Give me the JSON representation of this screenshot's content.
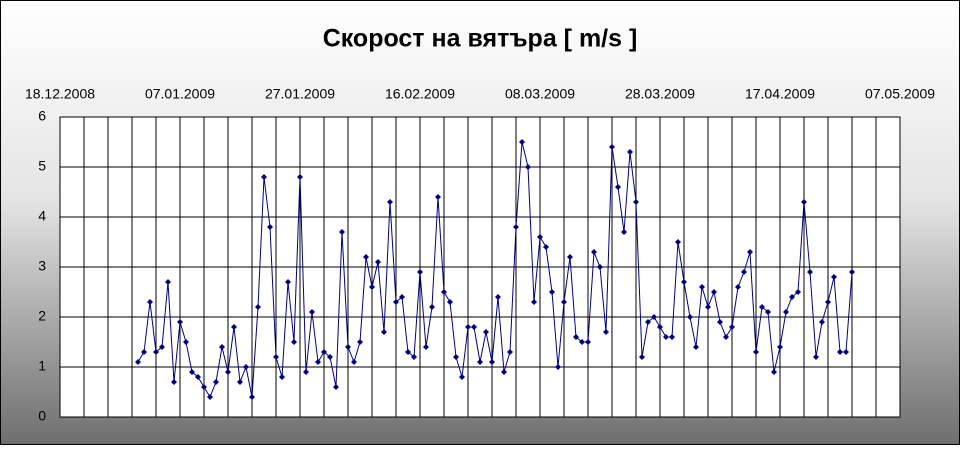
{
  "chart_data": {
    "type": "line",
    "title": "Скорост на вятъра  [ m/s ]",
    "x": [
      "31.12.2008",
      "01.01.2009",
      "02.01.2009",
      "03.01.2009",
      "04.01.2009",
      "05.01.2009",
      "06.01.2009",
      "07.01.2009",
      "08.01.2009",
      "09.01.2009",
      "10.01.2009",
      "11.01.2009",
      "12.01.2009",
      "13.01.2009",
      "14.01.2009",
      "15.01.2009",
      "16.01.2009",
      "17.01.2009",
      "18.01.2009",
      "19.01.2009",
      "20.01.2009",
      "21.01.2009",
      "22.01.2009",
      "23.01.2009",
      "24.01.2009",
      "25.01.2009",
      "26.01.2009",
      "27.01.2009",
      "28.01.2009",
      "29.01.2009",
      "30.01.2009",
      "31.01.2009",
      "01.02.2009",
      "02.02.2009",
      "03.02.2009",
      "04.02.2009",
      "05.02.2009",
      "06.02.2009",
      "07.02.2009",
      "08.02.2009",
      "09.02.2009",
      "10.02.2009",
      "11.02.2009",
      "12.02.2009",
      "13.02.2009",
      "14.02.2009",
      "15.02.2009",
      "16.02.2009",
      "17.02.2009",
      "18.02.2009",
      "19.02.2009",
      "20.02.2009",
      "21.02.2009",
      "22.02.2009",
      "23.02.2009",
      "24.02.2009",
      "25.02.2009",
      "26.02.2009",
      "27.02.2009",
      "28.02.2009",
      "01.03.2009",
      "02.03.2009",
      "03.03.2009",
      "04.03.2009",
      "05.03.2009",
      "06.03.2009",
      "07.03.2009",
      "08.03.2009",
      "09.03.2009",
      "10.03.2009",
      "11.03.2009",
      "12.03.2009",
      "13.03.2009",
      "14.03.2009",
      "15.03.2009",
      "16.03.2009",
      "17.03.2009",
      "18.03.2009",
      "19.03.2009",
      "20.03.2009",
      "21.03.2009",
      "22.03.2009",
      "23.03.2009",
      "24.03.2009",
      "25.03.2009",
      "26.03.2009",
      "27.03.2009",
      "28.03.2009",
      "29.03.2009",
      "30.03.2009",
      "31.03.2009",
      "01.04.2009",
      "02.04.2009",
      "03.04.2009",
      "04.04.2009",
      "05.04.2009",
      "06.04.2009",
      "07.04.2009",
      "08.04.2009",
      "09.04.2009",
      "10.04.2009",
      "11.04.2009",
      "12.04.2009",
      "13.04.2009",
      "14.04.2009",
      "15.04.2009",
      "16.04.2009",
      "17.04.2009",
      "18.04.2009",
      "19.04.2009",
      "20.04.2009",
      "21.04.2009",
      "22.04.2009",
      "23.04.2009",
      "24.04.2009",
      "25.04.2009",
      "26.04.2009",
      "27.04.2009",
      "28.04.2009",
      "29.04.2009"
    ],
    "series": [
      {
        "color": "#000080",
        "values": [
          1.1,
          1.3,
          2.3,
          1.3,
          1.4,
          2.7,
          0.7,
          1.9,
          1.5,
          0.9,
          0.8,
          0.6,
          0.4,
          0.7,
          1.4,
          0.9,
          1.8,
          0.7,
          1.0,
          0.4,
          2.2,
          4.8,
          3.8,
          1.2,
          0.8,
          2.7,
          1.5,
          4.8,
          0.9,
          2.1,
          1.1,
          1.3,
          1.2,
          0.6,
          3.7,
          1.4,
          1.1,
          1.5,
          3.2,
          2.6,
          3.1,
          1.7,
          4.3,
          2.3,
          2.4,
          1.3,
          1.2,
          2.9,
          1.4,
          2.2,
          4.4,
          2.5,
          2.3,
          1.2,
          0.8,
          1.8,
          1.8,
          1.1,
          1.7,
          1.1,
          2.4,
          0.9,
          1.3,
          3.8,
          5.5,
          5.0,
          2.3,
          3.6,
          3.4,
          2.5,
          1.0,
          2.3,
          3.2,
          1.6,
          1.5,
          1.5,
          3.3,
          3.0,
          1.7,
          5.4,
          4.6,
          3.7,
          5.3,
          4.3,
          1.2,
          1.9,
          2.0,
          1.8,
          1.6,
          1.6,
          3.5,
          2.7,
          2.0,
          1.4,
          2.6,
          2.2,
          2.5,
          1.9,
          1.6,
          1.8,
          2.6,
          2.9,
          3.3,
          1.3,
          2.2,
          2.1,
          0.9,
          1.4,
          2.1,
          2.4,
          2.5,
          4.3,
          2.9,
          1.2,
          1.9,
          2.3,
          2.8,
          1.3,
          1.3,
          2.9
        ]
      }
    ],
    "xlim": [
      "18.12.2008",
      "07.05.2009"
    ],
    "xticks": [
      "18.12.2008",
      "07.01.2009",
      "27.01.2009",
      "16.02.2009",
      "08.03.2009",
      "28.03.2009",
      "17.04.2009",
      "07.05.2009"
    ],
    "x_grid_interval_days": 4,
    "ylim": [
      0,
      6
    ],
    "yticks": [
      0,
      1,
      2,
      3,
      4,
      5,
      6
    ],
    "grid": true
  }
}
